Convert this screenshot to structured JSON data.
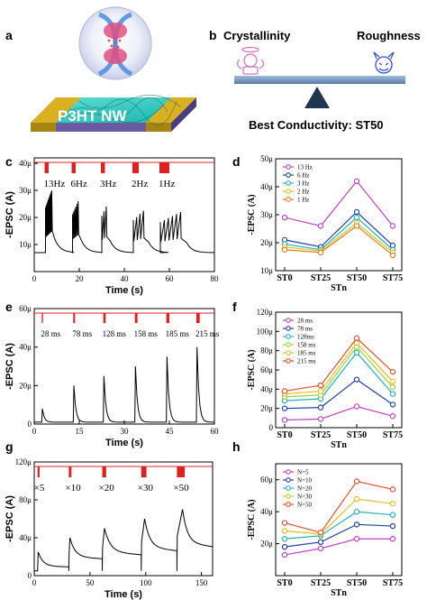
{
  "panels": {
    "a": {
      "label": "a",
      "device_text": "P3HT NW"
    },
    "b": {
      "label": "b",
      "left_text": "Crystallinity",
      "right_text": "Roughness",
      "bottom_text": "Best Conductivity: ST50"
    },
    "c": {
      "label": "c"
    },
    "d": {
      "label": "d"
    },
    "e": {
      "label": "e"
    },
    "f": {
      "label": "f"
    },
    "g": {
      "label": "g"
    },
    "h": {
      "label": "h"
    }
  },
  "colors": {
    "pulse": "#e02020",
    "trace": "#000000",
    "beam": "#7a9ac0",
    "pivot": "#1f3550",
    "angel": "#d070c0",
    "devil": "#3050d0"
  },
  "chart_data": [
    {
      "panel": "c",
      "type": "line",
      "xlabel": "Time (s)",
      "ylabel": "-EPSC (A)",
      "xlim": [
        0,
        80
      ],
      "ylim": [
        0,
        42
      ],
      "x_ticks": [
        "0",
        "20",
        "40",
        "60",
        "80"
      ],
      "y_ticks": [
        "10μ",
        "20μ",
        "30μ",
        "40μ"
      ],
      "y_tick_values": [
        10,
        20,
        30,
        40
      ],
      "pulse_labels": [
        "13Hz",
        "6Hz",
        "3Hz",
        "2Hz",
        "1Hz"
      ],
      "trains": [
        {
          "t0": 5,
          "n": 13,
          "dt": 0.077,
          "peak": 30,
          "base": 7
        },
        {
          "t0": 17,
          "n": 6,
          "dt": 0.167,
          "peak": 26,
          "base": 7
        },
        {
          "t0": 30,
          "n": 3,
          "dt": 0.33,
          "peak": 24,
          "base": 7
        },
        {
          "t0": 44,
          "n": 4,
          "dt": 0.5,
          "peak": 22.5,
          "base": 7
        },
        {
          "t0": 56,
          "n": 6,
          "dt": 0.6,
          "peak": 22,
          "base": 7
        }
      ]
    },
    {
      "panel": "d",
      "type": "line",
      "xlabel": "STn",
      "ylabel": "-EPSC (A)",
      "categories": [
        "ST0",
        "ST25",
        "ST50",
        "ST75"
      ],
      "ylim": [
        10,
        50
      ],
      "y_ticks": [
        "10μ",
        "20μ",
        "30μ",
        "40μ",
        "50μ"
      ],
      "y_tick_values": [
        10,
        20,
        30,
        40,
        50
      ],
      "series": [
        {
          "name": "13 Hz",
          "color": "#c040c0",
          "values": [
            29,
            26,
            42,
            26
          ]
        },
        {
          "name": "6 Hz",
          "color": "#2040a0",
          "values": [
            21,
            18.5,
            31,
            19
          ]
        },
        {
          "name": "3 Hz",
          "color": "#20b0c0",
          "values": [
            19.5,
            17.5,
            29,
            17.5
          ]
        },
        {
          "name": "2 Hz",
          "color": "#e0c020",
          "values": [
            18.5,
            17,
            27,
            16.5
          ]
        },
        {
          "name": "1 Hz",
          "color": "#e08020",
          "values": [
            17.5,
            16.5,
            26,
            15.5
          ]
        }
      ]
    },
    {
      "panel": "e",
      "type": "line",
      "xlabel": "Time (s)",
      "ylabel": "-EPSC (A)",
      "xlim": [
        0,
        60
      ],
      "ylim": [
        0,
        60
      ],
      "x_ticks": [
        "0",
        "15",
        "30",
        "45",
        "60"
      ],
      "y_ticks": [
        "0",
        "20μ",
        "40μ",
        "60μ"
      ],
      "y_tick_values": [
        0,
        20,
        40,
        60
      ],
      "pulse_labels": [
        "28 ms",
        "78 ms",
        "128 ms",
        "158 ms",
        "185 ms",
        "215 ms"
      ],
      "pulse_times": [
        2.5,
        13,
        23,
        33.5,
        44,
        54
      ],
      "pulse_widths_ms": [
        28,
        78,
        128,
        158,
        185,
        215
      ],
      "peaks": [
        8,
        20,
        25,
        30,
        35,
        40
      ],
      "base": 1
    },
    {
      "panel": "f",
      "type": "line",
      "xlabel": "STn",
      "ylabel": "-EPSC (A)",
      "categories": [
        "ST0",
        "ST25",
        "ST50",
        "ST75"
      ],
      "ylim": [
        0,
        120
      ],
      "y_ticks": [
        "0",
        "20μ",
        "40μ",
        "60μ",
        "80μ",
        "100μ",
        "120μ"
      ],
      "y_tick_values": [
        0,
        20,
        40,
        60,
        80,
        100,
        120
      ],
      "series": [
        {
          "name": "28 ms",
          "color": "#c040c0",
          "values": [
            8,
            9,
            22,
            12
          ]
        },
        {
          "name": "78 ms",
          "color": "#2040a0",
          "values": [
            20,
            21,
            50,
            24
          ]
        },
        {
          "name": "128ms",
          "color": "#20b0c0",
          "values": [
            28,
            30,
            78,
            35
          ]
        },
        {
          "name": "158 ms",
          "color": "#a0d040",
          "values": [
            32,
            34,
            84,
            42
          ]
        },
        {
          "name": "185 ms",
          "color": "#e0c020",
          "values": [
            35,
            38,
            88,
            48
          ]
        },
        {
          "name": "215 ms",
          "color": "#e05030",
          "values": [
            38,
            44,
            93,
            58
          ]
        }
      ]
    },
    {
      "panel": "g",
      "type": "line",
      "xlabel": "Time (s)",
      "ylabel": "-EPSC (A)",
      "xlim": [
        0,
        160
      ],
      "ylim": [
        0,
        120
      ],
      "x_ticks": [
        "0",
        "50",
        "100",
        "150"
      ],
      "y_ticks": [
        "0",
        "40μ",
        "80μ",
        "120μ"
      ],
      "y_tick_values": [
        0,
        40,
        80,
        120
      ],
      "pulse_labels": [
        "×5",
        "×10",
        "×20",
        "×30",
        "×50"
      ],
      "pulse_times": [
        3,
        31,
        61,
        96,
        128
      ],
      "pulse_counts": [
        5,
        10,
        20,
        30,
        50
      ],
      "peaks": [
        25,
        40,
        50,
        60,
        70
      ],
      "sustained": [
        10,
        20,
        25,
        30,
        35
      ],
      "base": 5
    },
    {
      "panel": "h",
      "type": "line",
      "xlabel": "STn",
      "ylabel": "-EPSC (A)",
      "categories": [
        "ST0",
        "ST25",
        "ST50",
        "ST75"
      ],
      "ylim": [
        0,
        70
      ],
      "y_ticks": [
        "20μ",
        "40μ",
        "60μ"
      ],
      "y_tick_values": [
        20,
        40,
        60
      ],
      "series": [
        {
          "name": "N=5",
          "color": "#c040c0",
          "values": [
            13,
            17,
            23,
            23
          ]
        },
        {
          "name": "N=10",
          "color": "#2040a0",
          "values": [
            18,
            21,
            32,
            31
          ]
        },
        {
          "name": "N=20",
          "color": "#20b0c0",
          "values": [
            23,
            25,
            40,
            38
          ]
        },
        {
          "name": "N=30",
          "color": "#e0c020",
          "values": [
            28,
            26,
            48,
            45
          ]
        },
        {
          "name": "N=50",
          "color": "#e05030",
          "values": [
            33,
            27,
            59,
            54
          ]
        }
      ]
    }
  ]
}
